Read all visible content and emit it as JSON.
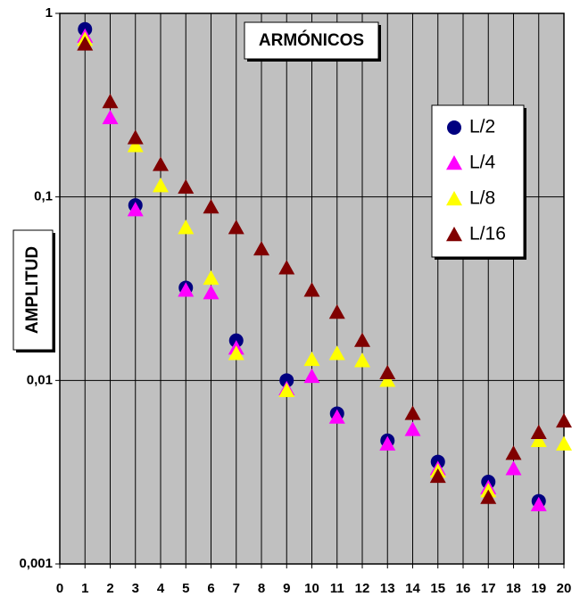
{
  "chart_data": {
    "type": "scatter",
    "title": "ARMÓNICOS",
    "y_label": "AMPLITUD",
    "log_y": true,
    "grid": true,
    "background": "#c0c0c0",
    "xlim": [
      0,
      20
    ],
    "xticks": [
      0,
      1,
      2,
      3,
      4,
      5,
      6,
      7,
      8,
      9,
      10,
      11,
      12,
      13,
      14,
      15,
      16,
      17,
      18,
      19,
      20
    ],
    "ylim": [
      0.001,
      1
    ],
    "yticks": [
      {
        "value": 0.001,
        "label": "0,001"
      },
      {
        "value": 0.01,
        "label": "0,01"
      },
      {
        "value": 0.1,
        "label": "0,1"
      },
      1
    ],
    "series": [
      {
        "name": "L/2",
        "color": "#000080",
        "marker": "circle",
        "x": [
          1,
          3,
          5,
          7,
          9,
          11,
          13,
          15,
          17,
          19
        ],
        "values": [
          0.82,
          0.09,
          0.032,
          0.0165,
          0.01,
          0.0066,
          0.0047,
          0.0036,
          0.0028,
          0.0022
        ]
      },
      {
        "name": "L/4",
        "color": "#ff00ff",
        "marker": "triangle",
        "x": [
          1,
          2,
          3,
          5,
          6,
          7,
          9,
          10,
          11,
          13,
          14,
          15,
          17,
          18,
          19
        ],
        "values": [
          0.75,
          0.27,
          0.085,
          0.031,
          0.03,
          0.015,
          0.009,
          0.0105,
          0.0063,
          0.0045,
          0.0054,
          0.0033,
          0.0026,
          0.0033,
          0.0021
        ]
      },
      {
        "name": "L/8",
        "color": "#ffff00",
        "marker": "triangle",
        "x": [
          1,
          3,
          4,
          5,
          6,
          7,
          9,
          10,
          11,
          12,
          13,
          15,
          17,
          19,
          20
        ],
        "values": [
          0.72,
          0.19,
          0.115,
          0.068,
          0.036,
          0.014,
          0.0088,
          0.013,
          0.014,
          0.0128,
          0.01,
          0.0032,
          0.0025,
          0.0047,
          0.0045
        ]
      },
      {
        "name": "L/16",
        "color": "#800000",
        "marker": "triangle",
        "x": [
          1,
          2,
          3,
          4,
          5,
          6,
          7,
          8,
          9,
          10,
          11,
          12,
          13,
          14,
          15,
          17,
          18,
          19,
          20
        ],
        "values": [
          0.68,
          0.33,
          0.21,
          0.15,
          0.113,
          0.088,
          0.068,
          0.052,
          0.041,
          0.031,
          0.0235,
          0.0165,
          0.011,
          0.0066,
          0.003,
          0.0023,
          0.004,
          0.0052,
          0.006
        ]
      }
    ]
  }
}
